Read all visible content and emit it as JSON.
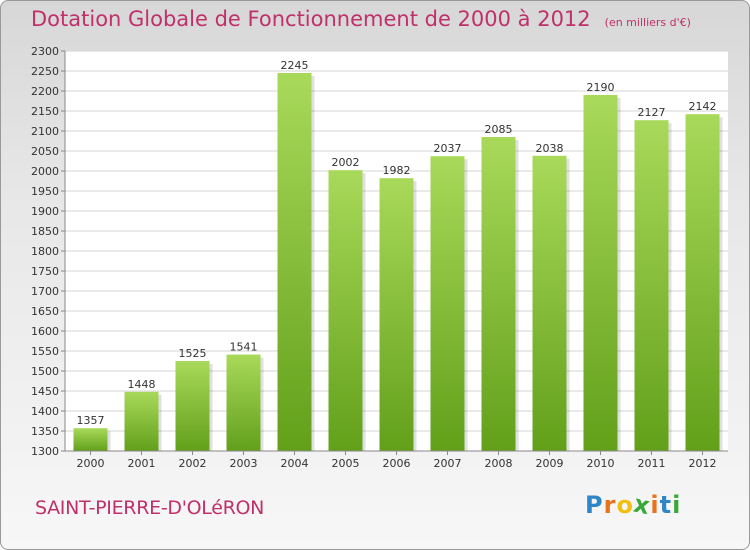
{
  "header": {
    "title": "Dotation Globale de Fonctionnement de 2000 à 2012",
    "subtitle": "(en milliers d'€)"
  },
  "footer": {
    "commune": "SAINT-PIERRE-D'OLéRON",
    "logo_letters": [
      "P",
      "r",
      "o",
      "x",
      "i",
      "t",
      "i"
    ],
    "logo_colors": [
      "#2e86c8",
      "#e8731c",
      "#f0c010",
      "#3aa838",
      "#e8731c",
      "#2e86c8",
      "#3aa838"
    ]
  },
  "colors": {
    "bar_light": "#a9d95a",
    "bar_dark": "#62a01a",
    "plot_bg": "#ffffff",
    "grid": "#d4d4d4",
    "text": "#333333"
  },
  "chart_data": {
    "type": "bar",
    "categories": [
      "2000",
      "2001",
      "2002",
      "2003",
      "2004",
      "2005",
      "2006",
      "2007",
      "2008",
      "2009",
      "2010",
      "2011",
      "2012"
    ],
    "values": [
      1357,
      1448,
      1525,
      1541,
      2245,
      2002,
      1982,
      2037,
      2085,
      2038,
      2190,
      2127,
      2142
    ],
    "ylim": [
      1300,
      2300
    ],
    "ytick_step": 50,
    "grid": true,
    "data_labels": true
  }
}
